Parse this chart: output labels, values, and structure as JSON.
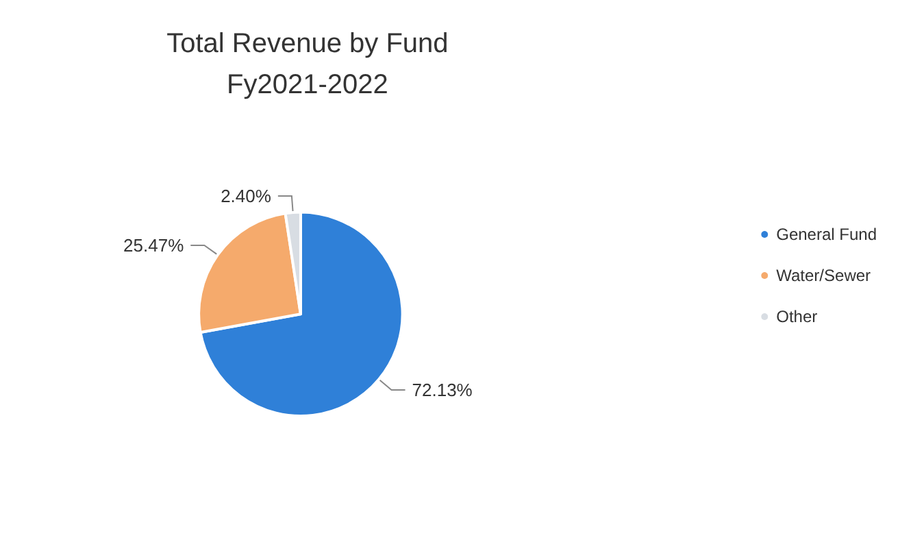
{
  "chart_data": {
    "type": "pie",
    "title": "Total Revenue by Fund\nFy2021-2022",
    "categories": [
      "General Fund",
      "Water/Sewer",
      "Other"
    ],
    "values": [
      72.13,
      25.47,
      2.4
    ],
    "value_labels": [
      "72.13%",
      "25.47%",
      "2.40%"
    ],
    "colors": [
      "#2f80d8",
      "#f5aa6c",
      "#d8dde3"
    ],
    "legend": "right"
  }
}
